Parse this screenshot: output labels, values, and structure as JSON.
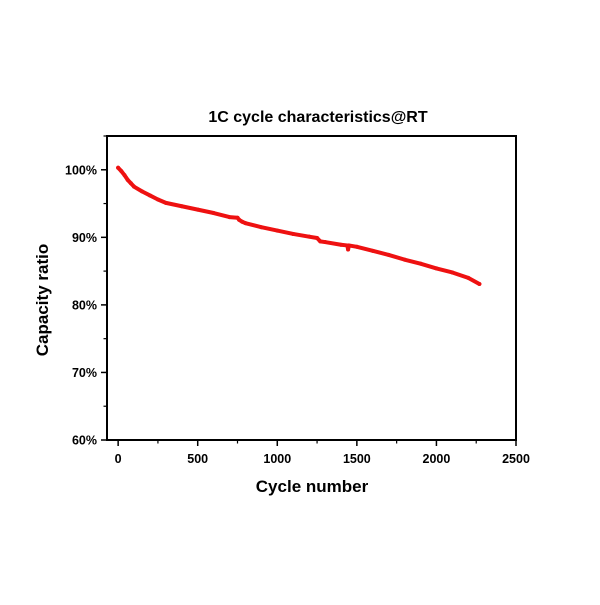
{
  "chart_data": {
    "type": "line",
    "title": "1C cycle characteristics@RT",
    "xlabel": "Cycle number",
    "ylabel": "Capacity ratio",
    "xlim": [
      -70,
      2500
    ],
    "ylim": [
      60,
      105
    ],
    "xticks": [
      0,
      500,
      1000,
      1500,
      2000,
      2500
    ],
    "xtick_labels": [
      "0",
      "500",
      "1000",
      "1500",
      "2000",
      "2500"
    ],
    "yticks": [
      60,
      70,
      80,
      90,
      100
    ],
    "ytick_labels": [
      "60%",
      "70%",
      "80%",
      "90%",
      "100%"
    ],
    "grid": false,
    "legend": "none",
    "series": [
      {
        "name": "Capacity ratio",
        "color": "#ee1111",
        "x": [
          0,
          20,
          40,
          60,
          80,
          100,
          150,
          200,
          250,
          300,
          400,
          500,
          600,
          700,
          750,
          760,
          780,
          800,
          900,
          1000,
          1100,
          1200,
          1250,
          1270,
          1300,
          1400,
          1440,
          1445,
          1450,
          1500,
          1600,
          1700,
          1800,
          1900,
          2000,
          2100,
          2200,
          2270
        ],
        "y": [
          100.3,
          99.8,
          99.2,
          98.5,
          98.0,
          97.5,
          96.8,
          96.2,
          95.6,
          95.1,
          94.6,
          94.1,
          93.6,
          93.0,
          92.9,
          92.6,
          92.3,
          92.1,
          91.5,
          91.0,
          90.5,
          90.1,
          89.9,
          89.4,
          89.3,
          88.9,
          88.8,
          88.2,
          88.8,
          88.6,
          88.0,
          87.4,
          86.7,
          86.1,
          85.4,
          84.8,
          84.0,
          83.1
        ]
      }
    ]
  }
}
